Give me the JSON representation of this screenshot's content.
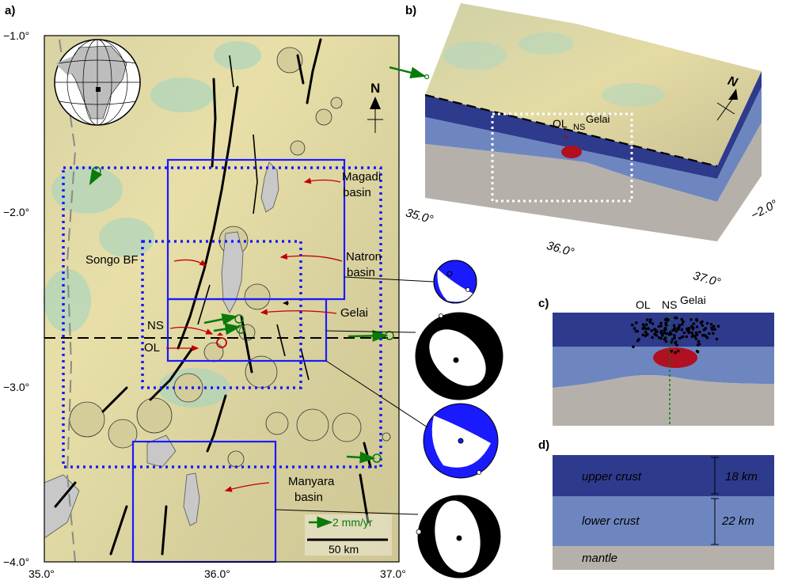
{
  "panel_labels": {
    "a": "a)",
    "b": "b)",
    "c": "c)",
    "d": "d)"
  },
  "map": {
    "lat_ticks": [
      "−1.0°",
      "−2.0°",
      "−3.0°",
      "−4.0°"
    ],
    "lon_ticks": [
      "35.0°",
      "36.0°",
      "37.0°"
    ],
    "north_label": "N",
    "labels": {
      "magadi_1": "Magadi",
      "magadi_2": "basin",
      "natron_1": "Natron",
      "natron_2": "basin",
      "gelai": "Gelai",
      "songo": "Songo BF",
      "ns": "NS",
      "ol": "OL",
      "manyara_1": "Manyara",
      "manyara_2": "basin",
      "velocity": "2 mm/yr",
      "scale": "50 km"
    },
    "colors": {
      "box": "#1a1aff",
      "vector": "#0a7a0a",
      "arrow": "#c00000",
      "lake": "#c8c8c8"
    }
  },
  "block3d": {
    "labels": {
      "ol": "OL",
      "ns": "NS",
      "gelai": "Gelai",
      "north": "N"
    },
    "lon_ticks": [
      "35.0°",
      "36.0°",
      "37.0°"
    ],
    "lat_tick": "−2.0°",
    "colors": {
      "upper": "#2e3a8c",
      "lower": "#6e86c0",
      "mantle": "#b5b1aa",
      "magma": "#b01020"
    }
  },
  "section": {
    "labels": {
      "ol": "OL",
      "ns": "NS",
      "gelai": "Gelai"
    }
  },
  "layers": {
    "upper": "upper crust",
    "upper_thickness": "18 km",
    "lower": "lower crust",
    "lower_thickness": "22 km",
    "mantle": "mantle"
  }
}
